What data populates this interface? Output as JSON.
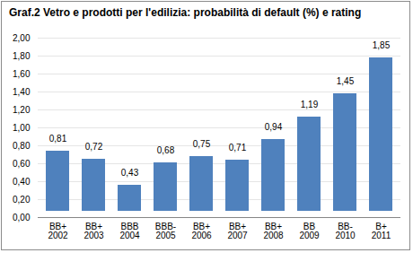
{
  "chart_data": {
    "type": "bar",
    "title": "Graf.2  Vetro e prodotti per l'edilizia: probabilità di default (%) e rating",
    "categories": [
      "2002",
      "2003",
      "2004",
      "2005",
      "2006",
      "2007",
      "2008",
      "2009",
      "2010",
      "2011"
    ],
    "ratings": [
      "BB+",
      "BB+",
      "BBB",
      "BBB-",
      "BB+",
      "BB+",
      "BB+",
      "BB",
      "BB-",
      "B+"
    ],
    "values": [
      0.81,
      0.72,
      0.43,
      0.68,
      0.75,
      0.71,
      0.94,
      1.19,
      1.45,
      1.85
    ],
    "value_labels": [
      "0,81",
      "0,72",
      "0,43",
      "0,68",
      "0,75",
      "0,71",
      "0,94",
      "1,19",
      "1,45",
      "1,85"
    ],
    "color": "#4f81bd",
    "ylim": [
      0,
      2
    ],
    "yticks": [
      {
        "value": 0,
        "label": "0,00"
      },
      {
        "value": 0.2,
        "label": "0,20"
      },
      {
        "value": 0.4,
        "label": "0,40"
      },
      {
        "value": 0.6,
        "label": "0,60"
      },
      {
        "value": 0.8,
        "label": "0,80"
      },
      {
        "value": 1,
        "label": "1,00"
      },
      {
        "value": 1.2,
        "label": "1,20"
      },
      {
        "value": 1.4,
        "label": "1,40"
      },
      {
        "value": 1.6,
        "label": "1,60"
      },
      {
        "value": 1.8,
        "label": "1,80"
      },
      {
        "value": 2,
        "label": "2,00"
      }
    ],
    "grid": true,
    "data_labels": true
  }
}
